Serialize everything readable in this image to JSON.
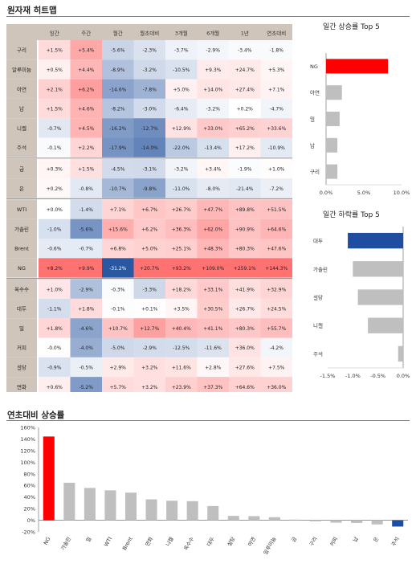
{
  "titles": {
    "heatmap": "원자재 히트맵",
    "ytd": "연초대비 상승률"
  },
  "heatmap": {
    "columns": [
      "일간",
      "주간",
      "월간",
      "월초대비",
      "3개월",
      "6개월",
      "1년",
      "연초대비"
    ],
    "rows": [
      {
        "name": "구리",
        "group": 1,
        "cells": [
          "+1.5%",
          "+5.4%",
          "-5.6%",
          "-2.3%",
          "-3.7%",
          "-2.9%",
          "-3.4%",
          "-1.8%"
        ],
        "v": [
          1.5,
          5.4,
          -5.6,
          -2.3,
          -3.7,
          -2.9,
          -3.4,
          -1.8
        ]
      },
      {
        "name": "알루미늄",
        "group": 1,
        "cells": [
          "+0.5%",
          "+4.4%",
          "-8.9%",
          "-3.2%",
          "-10.5%",
          "+9.3%",
          "+24.7%",
          "+5.3%"
        ],
        "v": [
          0.5,
          4.4,
          -8.9,
          -3.2,
          -10.5,
          9.3,
          24.7,
          5.3
        ]
      },
      {
        "name": "아연",
        "group": 1,
        "cells": [
          "+2.1%",
          "+6.2%",
          "-14.6%",
          "-7.8%",
          "+5.0%",
          "+14.0%",
          "+27.4%",
          "+7.1%"
        ],
        "v": [
          2.1,
          6.2,
          -14.6,
          -7.8,
          5.0,
          14.0,
          27.4,
          7.1
        ]
      },
      {
        "name": "납",
        "group": 1,
        "cells": [
          "+1.5%",
          "+4.6%",
          "-8.2%",
          "-3.0%",
          "-6.4%",
          "-3.2%",
          "+0.2%",
          "-4.7%"
        ],
        "v": [
          1.5,
          4.6,
          -8.2,
          -3.0,
          -6.4,
          -3.2,
          0.2,
          -4.7
        ]
      },
      {
        "name": "니켈",
        "group": 1,
        "cells": [
          "-0.7%",
          "+4.5%",
          "-16.2%",
          "-12.7%",
          "+12.9%",
          "+33.0%",
          "+65.2%",
          "+33.6%"
        ],
        "v": [
          -0.7,
          4.5,
          -16.2,
          -12.7,
          12.9,
          33.0,
          65.2,
          33.6
        ]
      },
      {
        "name": "주석",
        "group": 1,
        "cells": [
          "-0.1%",
          "+2.2%",
          "-17.9%",
          "-14.0%",
          "-22.0%",
          "-13.4%",
          "+17.2%",
          "-10.9%"
        ],
        "v": [
          -0.1,
          2.2,
          -17.9,
          -14.0,
          -22.0,
          -13.4,
          17.2,
          -10.9
        ]
      },
      {
        "name": "금",
        "group": 2,
        "cells": [
          "+0.3%",
          "+1.5%",
          "-4.5%",
          "-3.1%",
          "-3.2%",
          "+3.4%",
          "-1.9%",
          "+1.0%"
        ],
        "v": [
          0.3,
          1.5,
          -4.5,
          -3.1,
          -3.2,
          3.4,
          -1.9,
          1.0
        ]
      },
      {
        "name": "은",
        "group": 2,
        "cells": [
          "+0.2%",
          "-0.8%",
          "-10.7%",
          "-9.8%",
          "-11.0%",
          "-8.0%",
          "-21.4%",
          "-7.2%"
        ],
        "v": [
          0.2,
          -0.8,
          -10.7,
          -9.8,
          -11.0,
          -8.0,
          -21.4,
          -7.2
        ]
      },
      {
        "name": "WTI",
        "group": 3,
        "cells": [
          "+0.0%",
          "-1.4%",
          "+7.1%",
          "+6.7%",
          "+26.7%",
          "+47.7%",
          "+89.8%",
          "+51.5%"
        ],
        "v": [
          0.0,
          -1.4,
          7.1,
          6.7,
          26.7,
          47.7,
          89.8,
          51.5
        ]
      },
      {
        "name": "가솔린",
        "group": 3,
        "cells": [
          "-1.0%",
          "-5.6%",
          "+15.6%",
          "+6.2%",
          "+36.3%",
          "+62.0%",
          "+90.9%",
          "+64.6%"
        ],
        "v": [
          -1.0,
          -5.6,
          15.6,
          6.2,
          36.3,
          62.0,
          90.9,
          64.6
        ]
      },
      {
        "name": "Brent",
        "group": 3,
        "cells": [
          "-0.6%",
          "-0.7%",
          "+6.8%",
          "+5.0%",
          "+25.1%",
          "+48.3%",
          "+80.3%",
          "+47.6%"
        ],
        "v": [
          -0.6,
          -0.7,
          6.8,
          5.0,
          25.1,
          48.3,
          80.3,
          47.6
        ]
      },
      {
        "name": "NG",
        "group": 3,
        "cells": [
          "+8.2%",
          "+9.9%",
          "-31.2%",
          "+20.7%",
          "+93.2%",
          "+109.0%",
          "+259.1%",
          "+144.3%"
        ],
        "v": [
          8.2,
          9.9,
          -31.2,
          20.7,
          93.2,
          109.0,
          259.1,
          144.3
        ]
      },
      {
        "name": "옥수수",
        "group": 4,
        "cells": [
          "+1.0%",
          "-2.9%",
          "-0.3%",
          "-3.3%",
          "+18.2%",
          "+33.1%",
          "+41.9%",
          "+32.9%"
        ],
        "v": [
          1.0,
          -2.9,
          -0.3,
          -3.3,
          18.2,
          33.1,
          41.9,
          32.9
        ]
      },
      {
        "name": "대두",
        "group": 4,
        "cells": [
          "-1.1%",
          "+1.8%",
          "-0.1%",
          "+0.1%",
          "+3.5%",
          "+30.5%",
          "+26.7%",
          "+24.5%"
        ],
        "v": [
          -1.1,
          1.8,
          -0.1,
          0.1,
          3.5,
          30.5,
          26.7,
          24.5
        ]
      },
      {
        "name": "밀",
        "group": 4,
        "cells": [
          "+1.8%",
          "-4.6%",
          "+10.7%",
          "+12.7%",
          "+40.4%",
          "+41.1%",
          "+80.3%",
          "+55.7%"
        ],
        "v": [
          1.8,
          -4.6,
          10.7,
          12.7,
          40.4,
          41.1,
          80.3,
          55.7
        ]
      },
      {
        "name": "커피",
        "group": 4,
        "cells": [
          "-0.0%",
          "-4.0%",
          "-5.0%",
          "-2.9%",
          "-12.5%",
          "-11.6%",
          "+36.0%",
          "-4.2%"
        ],
        "v": [
          0.0,
          -4.0,
          -5.0,
          -2.9,
          -12.5,
          -11.6,
          36.0,
          -4.2
        ]
      },
      {
        "name": "설탕",
        "group": 4,
        "cells": [
          "-0.9%",
          "-0.5%",
          "+2.9%",
          "+3.2%",
          "+11.6%",
          "+2.8%",
          "+27.6%",
          "+7.5%"
        ],
        "v": [
          -0.9,
          -0.5,
          2.9,
          3.2,
          11.6,
          2.8,
          27.6,
          7.5
        ]
      },
      {
        "name": "면화",
        "group": 4,
        "cells": [
          "+0.6%",
          "-5.2%",
          "+5.7%",
          "+3.2%",
          "+23.9%",
          "+37.3%",
          "+64.6%",
          "+36.0%"
        ],
        "v": [
          0.6,
          -5.2,
          5.7,
          3.2,
          23.9,
          37.3,
          64.6,
          36.0
        ]
      }
    ],
    "colors": {
      "header_bg": "#cfc5bb",
      "row_label_bg": "#cfc5bb",
      "pos": "#ff6b6b",
      "neg": "#1f4e9c",
      "separator": "#9a9a9a"
    }
  },
  "chart_data": [
    {
      "type": "bar",
      "orientation": "horizontal",
      "title": "일간 상승률 Top 5",
      "categories": [
        "NG",
        "아연",
        "밀",
        "납",
        "구리"
      ],
      "values": [
        8.2,
        2.1,
        1.8,
        1.5,
        1.5
      ],
      "xlim": [
        0,
        10
      ],
      "xticks": [
        "0.0%",
        "5.0%",
        "10.0%"
      ],
      "xtick_values": [
        0,
        5,
        10
      ],
      "colors": [
        "#ff0000",
        "#bfbfbf",
        "#bfbfbf",
        "#bfbfbf",
        "#bfbfbf"
      ]
    },
    {
      "type": "bar",
      "orientation": "horizontal",
      "title": "일간 하락률 Top 5",
      "categories": [
        "대두",
        "가솔린",
        "설탕",
        "니켈",
        "주석"
      ],
      "values": [
        -1.1,
        -1.0,
        -0.9,
        -0.7,
        -0.1
      ],
      "xlim": [
        -1.5,
        0
      ],
      "xticks": [
        "-1.5%",
        "-1.0%",
        "-0.5%",
        "0.0%"
      ],
      "xtick_values": [
        -1.5,
        -1.0,
        -0.5,
        0
      ],
      "colors": [
        "#1f4ea0",
        "#bfbfbf",
        "#bfbfbf",
        "#bfbfbf",
        "#bfbfbf"
      ]
    },
    {
      "type": "bar",
      "title": "연초대비 상승률",
      "categories": [
        "NG",
        "가솔린",
        "밀",
        "WTI",
        "Brent",
        "면화",
        "니켈",
        "옥수수",
        "대두",
        "설탕",
        "아연",
        "알루미늄",
        "금",
        "구리",
        "커피",
        "납",
        "은",
        "주석"
      ],
      "values": [
        144.3,
        64.6,
        55.7,
        51.5,
        47.6,
        36.0,
        33.6,
        32.9,
        24.5,
        7.5,
        7.1,
        5.3,
        1.0,
        -1.8,
        -4.2,
        -4.7,
        -7.2,
        -10.9
      ],
      "ylim": [
        -20,
        160
      ],
      "yticks": [
        "-20%",
        "0%",
        "20%",
        "40%",
        "60%",
        "80%",
        "100%",
        "120%",
        "140%",
        "160%"
      ],
      "ytick_values": [
        -20,
        0,
        20,
        40,
        60,
        80,
        100,
        120,
        140,
        160
      ],
      "colors": {
        "max": "#ff0000",
        "min": "#1f4ea0",
        "other": "#bfbfbf"
      }
    }
  ]
}
